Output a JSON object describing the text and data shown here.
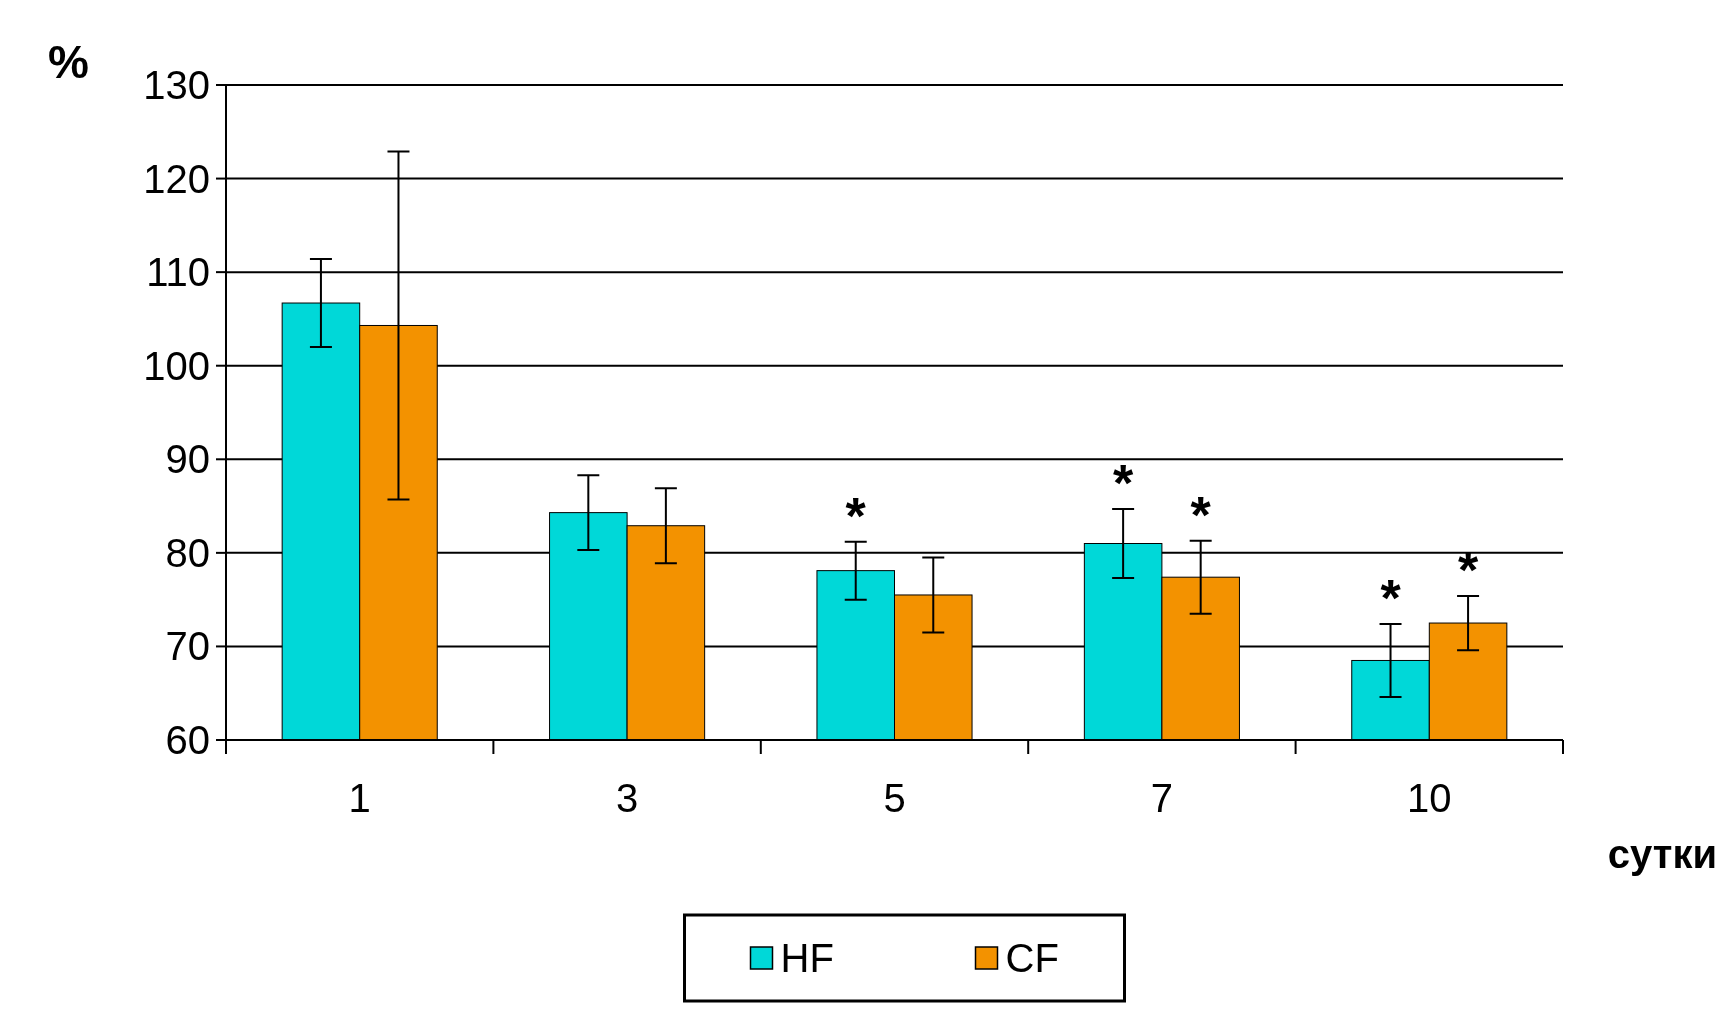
{
  "chart_data": {
    "type": "bar",
    "ylabel": "%",
    "xlabel": "сутки",
    "categories": [
      "1",
      "3",
      "5",
      "7",
      "10"
    ],
    "series": [
      {
        "name": "HF",
        "color": "#00d8d8",
        "values": [
          106.7,
          84.3,
          78.1,
          81.0,
          68.5
        ],
        "errors": [
          [
            102.0,
            111.4
          ],
          [
            80.3,
            88.3
          ],
          [
            75.0,
            81.2
          ],
          [
            77.3,
            84.7
          ],
          [
            64.6,
            72.4
          ]
        ]
      },
      {
        "name": "CF",
        "color": "#f39200",
        "values": [
          104.3,
          82.9,
          75.5,
          77.4,
          72.5
        ],
        "errors": [
          [
            85.7,
            122.9
          ],
          [
            78.9,
            86.9
          ],
          [
            71.5,
            79.5
          ],
          [
            73.5,
            81.3
          ],
          [
            69.6,
            75.4
          ]
        ]
      }
    ],
    "ylim": [
      60,
      130
    ],
    "yticks": [
      60,
      70,
      80,
      90,
      100,
      110,
      120,
      130
    ],
    "grid": "y",
    "legend": "bottom",
    "annotations": [
      "*",
      "*",
      "*",
      "*",
      "*"
    ]
  }
}
